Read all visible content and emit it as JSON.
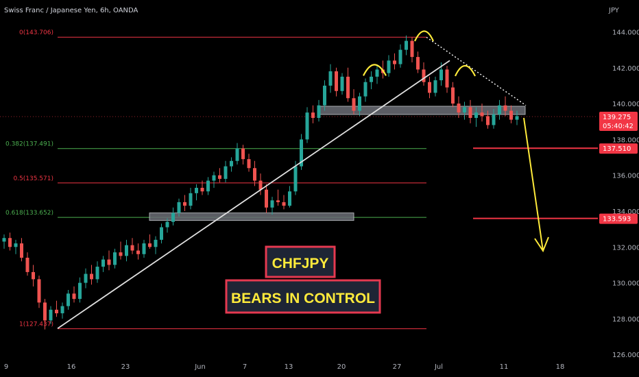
{
  "chart_data": {
    "type": "candlestick",
    "title": "Swiss Franc / Japanese Yen, 6h, OANDA",
    "ylabel": "JPY",
    "ylim": [
      126.0,
      146.0
    ],
    "y_ticks": [
      "144.000",
      "142.000",
      "140.000",
      "138.000",
      "136.000",
      "134.000",
      "132.000",
      "130.000",
      "128.000",
      "126.000"
    ],
    "x_ticks": [
      "9",
      "16",
      "23",
      "Jun",
      "7",
      "13",
      "20",
      "27",
      "Jul",
      "11",
      "18"
    ],
    "price_labels": [
      {
        "label": "139.275",
        "sub": "05:40:42",
        "value": 139.275,
        "color": "#f23645"
      },
      {
        "label": "137.510",
        "value": 137.51,
        "color": "#f23645"
      },
      {
        "label": "133.593",
        "value": 133.593,
        "color": "#f23645"
      }
    ],
    "fib_levels": [
      {
        "label": "0(143.706)",
        "value": 143.706,
        "color": "#f23645"
      },
      {
        "label": "0.382(137.491)",
        "value": 137.491,
        "color": "#4caf50"
      },
      {
        "label": "0.5(135.571)",
        "value": 135.571,
        "color": "#f23645"
      },
      {
        "label": "0.618(133.652)",
        "value": 133.652,
        "color": "#4caf50"
      },
      {
        "label": "1(127.437)",
        "value": 127.437,
        "color": "#f23645"
      }
    ],
    "annotations": {
      "symbol": "CHFJPY",
      "headline": "BEARS IN CONTROL"
    },
    "series": [
      {
        "name": "",
        "values": [
          [
            132.3,
            132.7,
            131.9,
            132.5
          ],
          [
            132.5,
            132.8,
            131.8,
            132.0
          ],
          [
            132.0,
            132.4,
            131.6,
            132.2
          ],
          [
            132.2,
            132.5,
            131.2,
            131.4
          ],
          [
            131.4,
            131.7,
            130.4,
            130.6
          ],
          [
            130.6,
            131.0,
            129.8,
            130.2
          ],
          [
            130.2,
            130.4,
            128.6,
            128.9
          ],
          [
            128.9,
            129.1,
            127.4,
            127.9
          ],
          [
            127.9,
            128.7,
            127.7,
            128.5
          ],
          [
            128.5,
            129.0,
            128.1,
            128.3
          ],
          [
            128.3,
            128.9,
            128.0,
            128.7
          ],
          [
            128.7,
            129.6,
            128.5,
            129.4
          ],
          [
            129.4,
            129.8,
            128.9,
            129.1
          ],
          [
            129.1,
            130.3,
            128.9,
            130.0
          ],
          [
            130.0,
            130.8,
            129.7,
            130.5
          ],
          [
            130.5,
            131.0,
            129.9,
            130.2
          ],
          [
            130.2,
            131.2,
            130.0,
            130.9
          ],
          [
            130.9,
            131.5,
            130.6,
            131.3
          ],
          [
            131.3,
            131.8,
            130.7,
            131.0
          ],
          [
            131.0,
            131.9,
            130.8,
            131.7
          ],
          [
            131.7,
            132.3,
            131.3,
            131.5
          ],
          [
            131.5,
            132.4,
            131.2,
            132.1
          ],
          [
            132.1,
            132.5,
            131.6,
            131.8
          ],
          [
            131.8,
            132.2,
            131.3,
            131.6
          ],
          [
            131.6,
            132.4,
            131.4,
            132.2
          ],
          [
            132.2,
            132.7,
            131.9,
            132.0
          ],
          [
            132.0,
            132.6,
            131.6,
            132.4
          ],
          [
            132.4,
            133.3,
            132.2,
            133.1
          ],
          [
            133.1,
            133.6,
            132.8,
            133.4
          ],
          [
            133.4,
            134.2,
            133.2,
            133.9
          ],
          [
            133.9,
            134.7,
            133.7,
            134.5
          ],
          [
            134.5,
            134.9,
            134.0,
            134.3
          ],
          [
            134.3,
            135.3,
            134.1,
            135.0
          ],
          [
            135.0,
            135.5,
            134.6,
            135.3
          ],
          [
            135.3,
            135.7,
            134.9,
            135.1
          ],
          [
            135.1,
            135.9,
            134.9,
            135.7
          ],
          [
            135.7,
            136.2,
            135.3,
            136.0
          ],
          [
            136.0,
            136.4,
            135.6,
            135.8
          ],
          [
            135.8,
            136.8,
            135.6,
            136.5
          ],
          [
            136.5,
            137.0,
            136.2,
            136.8
          ],
          [
            136.8,
            137.8,
            136.6,
            137.5
          ],
          [
            137.5,
            137.7,
            136.6,
            136.9
          ],
          [
            136.9,
            137.2,
            136.2,
            136.4
          ],
          [
            136.4,
            136.8,
            135.4,
            135.7
          ],
          [
            135.7,
            136.1,
            134.9,
            135.2
          ],
          [
            135.2,
            135.5,
            133.9,
            134.2
          ],
          [
            134.2,
            134.8,
            133.8,
            134.6
          ],
          [
            134.6,
            135.2,
            134.3,
            134.5
          ],
          [
            134.5,
            134.9,
            134.1,
            134.3
          ],
          [
            134.3,
            135.4,
            134.2,
            135.1
          ],
          [
            135.1,
            136.8,
            134.9,
            136.5
          ],
          [
            136.5,
            138.3,
            136.3,
            138.0
          ],
          [
            138.0,
            139.8,
            137.8,
            139.5
          ],
          [
            139.5,
            139.9,
            138.9,
            139.2
          ],
          [
            139.2,
            140.2,
            139.0,
            139.9
          ],
          [
            139.9,
            141.3,
            139.6,
            141.0
          ],
          [
            141.0,
            142.2,
            140.6,
            141.8
          ],
          [
            141.8,
            142.0,
            140.4,
            140.7
          ],
          [
            140.7,
            141.7,
            140.5,
            141.5
          ],
          [
            141.5,
            142.0,
            140.1,
            140.3
          ],
          [
            140.3,
            140.8,
            139.4,
            139.6
          ],
          [
            139.6,
            140.6,
            139.3,
            140.4
          ],
          [
            140.4,
            141.4,
            140.1,
            141.2
          ],
          [
            141.2,
            141.8,
            140.8,
            141.5
          ],
          [
            141.5,
            142.1,
            141.1,
            141.9
          ],
          [
            141.9,
            142.4,
            141.4,
            141.7
          ],
          [
            141.7,
            142.7,
            141.5,
            142.4
          ],
          [
            142.4,
            142.8,
            141.9,
            142.2
          ],
          [
            142.2,
            143.3,
            142.0,
            143.0
          ],
          [
            143.0,
            143.8,
            142.7,
            143.5
          ],
          [
            143.5,
            143.7,
            142.3,
            142.6
          ],
          [
            142.6,
            142.9,
            141.7,
            141.9
          ],
          [
            141.9,
            142.3,
            141.0,
            141.2
          ],
          [
            141.2,
            141.5,
            140.3,
            140.6
          ],
          [
            140.6,
            141.5,
            140.4,
            141.3
          ],
          [
            141.3,
            142.3,
            141.0,
            141.9
          ],
          [
            141.9,
            142.1,
            140.6,
            140.9
          ],
          [
            140.9,
            141.2,
            139.8,
            140.0
          ],
          [
            140.0,
            140.4,
            139.2,
            139.5
          ],
          [
            139.5,
            140.1,
            139.1,
            139.8
          ],
          [
            139.8,
            140.2,
            138.9,
            139.2
          ],
          [
            139.2,
            139.8,
            138.7,
            139.5
          ],
          [
            139.5,
            140.0,
            139.0,
            139.3
          ],
          [
            139.3,
            139.6,
            138.6,
            138.8
          ],
          [
            138.8,
            139.7,
            138.6,
            139.4
          ],
          [
            139.4,
            140.2,
            139.1,
            139.9
          ],
          [
            139.9,
            140.4,
            139.3,
            139.6
          ],
          [
            139.6,
            139.9,
            138.9,
            139.1
          ],
          [
            139.1,
            139.6,
            138.8,
            139.3
          ]
        ]
      }
    ]
  }
}
